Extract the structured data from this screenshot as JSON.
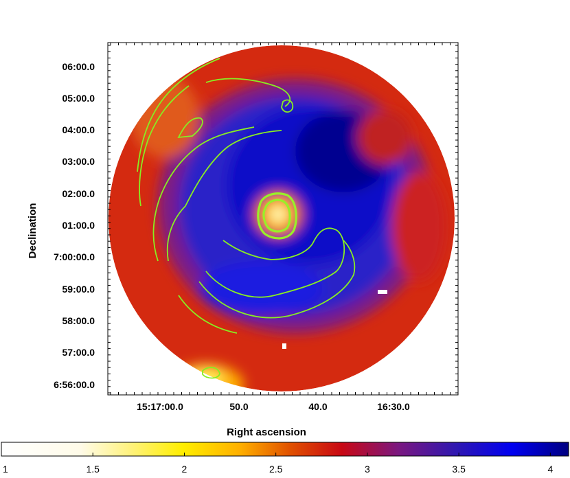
{
  "chart_data": {
    "type": "heatmap",
    "title": "",
    "xlabel": "Right ascension",
    "ylabel": "Declination",
    "x_tick_labels": [
      "15:17:00.0",
      "50.0",
      "40.0",
      "16:30.0"
    ],
    "y_tick_labels": [
      "06:00.0",
      "05:00.0",
      "04:00.0",
      "03:00.0",
      "02:00.0",
      "01:00.0",
      "7:00:00.0",
      "59:00.0",
      "58:00.0",
      "57:00.0",
      "6:56:00.0"
    ],
    "colorbar": {
      "range": [
        1,
        4.1
      ],
      "tick_labels": [
        "1",
        "1.5",
        "2",
        "2.5",
        "3",
        "3.5",
        "4"
      ],
      "tick_values": [
        1,
        1.5,
        2,
        2.5,
        3,
        3.5,
        4
      ],
      "colormap": [
        "#ffffff",
        "#fff6c0",
        "#ffff00",
        "#ffb000",
        "#e85000",
        "#c00010",
        "#7a1a7a",
        "#3a1aa0",
        "#0000ff",
        "#000088"
      ]
    },
    "field": {
      "shape": "circle",
      "background_value": 3.0,
      "features": [
        {
          "kind": "central bright blob",
          "value": 1.8
        },
        {
          "kind": "dark ring surrounding center",
          "value": 3.7
        },
        {
          "kind": "bright south-west edge",
          "value": 2.6
        }
      ]
    },
    "overlay": {
      "kind": "contours",
      "color": "#88ee22"
    },
    "colors": {
      "contour": "#88ee22",
      "axis": "#000000"
    }
  }
}
